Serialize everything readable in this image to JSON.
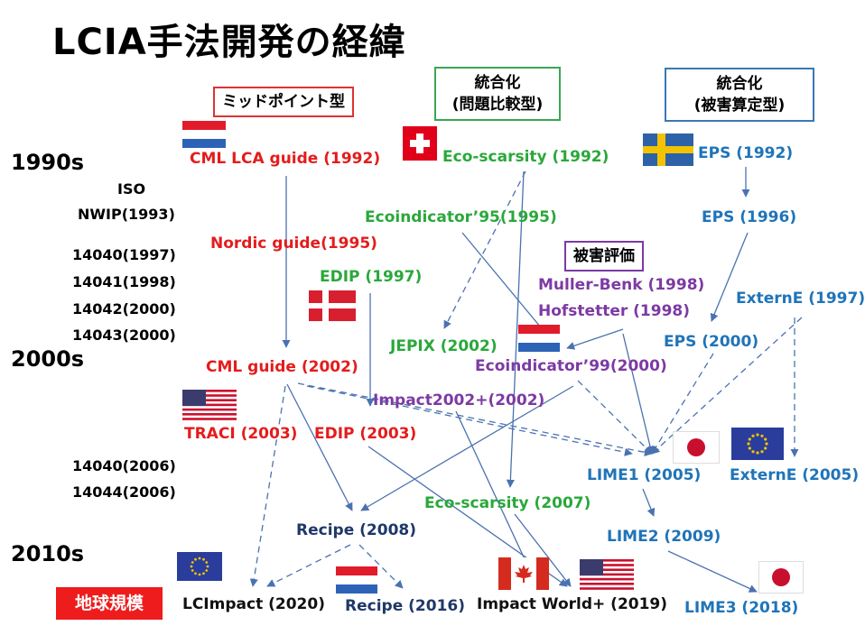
{
  "title": "LCIA手法開発の経緯",
  "decades": [
    "1990s",
    "2000s",
    "2010s"
  ],
  "iso": [
    "ISO",
    "NWIP(1993)",
    "14040(1997)",
    "14041(1998)",
    "14042(2000)",
    "14043(2000)",
    "14040(2006)",
    "14044(2006)"
  ],
  "category_labels": {
    "midpoint": "ミッドポイント型",
    "integrated_comparison": [
      "統合化",
      "(問題比較型)"
    ],
    "integrated_damage": [
      "統合化",
      "(被害算定型)"
    ],
    "damage": "被害評価",
    "global": "地球規模"
  },
  "methods": {
    "cml_lca_guide": "CML LCA guide (1992)",
    "eco_scarsity_1992": "Eco-scarsity (1992)",
    "eps_1992": "EPS (1992)",
    "ecoindicator95": "Ecoindicator’95(1995)",
    "eps_1996": "EPS (1996)",
    "nordic_guide": "Nordic guide(1995)",
    "edip_1997": "EDIP (1997)",
    "muller_benk": "Muller-Benk (1998)",
    "hofstetter": "Hofstetter (1998)",
    "externe_1997": "ExternE (1997)",
    "jepix": "JEPIX (2002)",
    "eps_2000": "EPS (2000)",
    "cml_guide_2002": "CML guide (2002)",
    "ecoindicator99": "Ecoindicator’99(2000)",
    "impact2002": "Impact2002+(2002)",
    "traci": "TRACI (2003)",
    "edip_2003": "EDIP (2003)",
    "lime1": "LIME1 (2005)",
    "externe_2005": "ExternE (2005)",
    "eco_scarsity_2007": "Eco-scarsity (2007)",
    "recipe_2008": "Recipe (2008)",
    "lime2": "LIME2 (2009)",
    "lcimpact": "LCImpact (2020)",
    "recipe_2016": "Recipe (2016)",
    "impact_world": "Impact World+ (2019)",
    "lime3": "LIME3 (2018)"
  },
  "colors": {
    "midpoint": "#e41c1c",
    "comparison": "#2aa83a",
    "damage_integrated": "#1f74b8",
    "damage": "#7d3aa3",
    "recipe": "#1f3868",
    "arrow": "#4a72b0"
  },
  "flags": [
    "netherlands-flag",
    "switzerland-flag",
    "sweden-flag",
    "denmark-flag",
    "netherlands-flag",
    "usa-flag",
    "japan-flag",
    "eu-flag",
    "eu-flag",
    "netherlands-flag",
    "canada-flag",
    "usa-flag",
    "japan-flag"
  ]
}
